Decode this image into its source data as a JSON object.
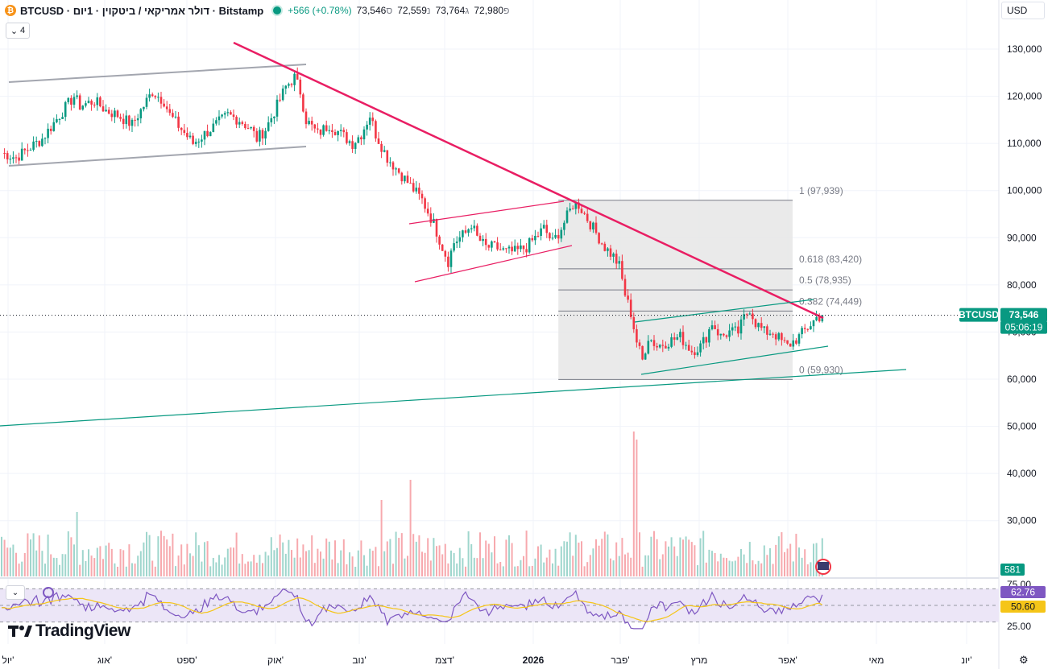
{
  "header": {
    "symbol_title": "BTCUSD · דולר אמריקאי / ביטקוין · 1יום · Bitstamp",
    "coin_glyph": "₿",
    "change": "+566 (+0.78%)",
    "open_label": "פ",
    "open": "72,980",
    "high_label": "ג",
    "high": "73,764",
    "low_label": "נ",
    "low": "72,559",
    "close_label": "ס",
    "close": "73,546"
  },
  "indicators_toggle": {
    "count": "4",
    "icon": "chevron-up-icon"
  },
  "currency_select": "USD",
  "rsi_toggle_icon": "chevron-down-icon",
  "brand": {
    "name": "TradingView",
    "icon": "tradingview-logo-icon"
  },
  "settings_icon": "gear-icon",
  "colors": {
    "up": "#089981",
    "down": "#f23645",
    "trendline": "#e91e63",
    "channel": "#9598a1",
    "fib_bg": "#e6e6e6",
    "rsi": "#7e57c2",
    "rsi_ma": "#f5c518",
    "rsi_band": "#ece6f7"
  },
  "chart_data": [
    {
      "type": "candlestick",
      "symbol": "BTCUSD",
      "x_ticks": [
        "יול'",
        "אוג'",
        "ספט'",
        "אוק'",
        "נוב'",
        "דצמ'",
        "2026",
        "פבר'",
        "מרץ",
        "אפר'",
        "מאי",
        "יונ'"
      ],
      "y_ticks": [
        30000,
        40000,
        50000,
        60000,
        70000,
        80000,
        90000,
        100000,
        110000,
        120000,
        130000
      ],
      "y_tick_labels": [
        "30,000",
        "40,000",
        "50,000",
        "60,000",
        "70,000",
        "80,000",
        "90,000",
        "100,000",
        "110,000",
        "120,000",
        "130,000"
      ],
      "ylim": [
        24000,
        134000
      ],
      "last_price_label": {
        "symbol": "BTCUSD",
        "price": "73,546",
        "countdown": "05:06:19",
        "value": 73546
      },
      "volume_last_label": "581",
      "price_path": [
        [
          0,
          108
        ],
        [
          5,
          107
        ],
        [
          14,
          111
        ],
        [
          20,
          116
        ],
        [
          25,
          120
        ],
        [
          27,
          118
        ],
        [
          32,
          119
        ],
        [
          36,
          117
        ],
        [
          40,
          116
        ],
        [
          45,
          114
        ],
        [
          48,
          117
        ],
        [
          52,
          121
        ],
        [
          56,
          119
        ],
        [
          58,
          116
        ],
        [
          62,
          113
        ],
        [
          66,
          110
        ],
        [
          70,
          112
        ],
        [
          74,
          114
        ],
        [
          78,
          116
        ],
        [
          82,
          115
        ],
        [
          86,
          113
        ],
        [
          88,
          111
        ],
        [
          91,
          113
        ],
        [
          95,
          118
        ],
        [
          98,
          122
        ],
        [
          101,
          124
        ],
        [
          103,
          121
        ],
        [
          105,
          115
        ],
        [
          109,
          112
        ],
        [
          113,
          114
        ],
        [
          117,
          112
        ],
        [
          121,
          110
        ],
        [
          124,
          112
        ],
        [
          127,
          116
        ],
        [
          129,
          112
        ],
        [
          133,
          107
        ],
        [
          137,
          104
        ],
        [
          141,
          101
        ],
        [
          145,
          98
        ],
        [
          149,
          93
        ],
        [
          152,
          88
        ],
        [
          154,
          85
        ],
        [
          156,
          89
        ],
        [
          160,
          91
        ],
        [
          162,
          93
        ],
        [
          164,
          90
        ],
        [
          167,
          88
        ],
        [
          170,
          88
        ],
        [
          174,
          87
        ],
        [
          177,
          87
        ],
        [
          181,
          88
        ],
        [
          184,
          90
        ],
        [
          187,
          92
        ],
        [
          190,
          89
        ],
        [
          193,
          92
        ],
        [
          197,
          97
        ],
        [
          199,
          97
        ],
        [
          202,
          94
        ],
        [
          205,
          91
        ],
        [
          208,
          88
        ],
        [
          211,
          86
        ],
        [
          213,
          84
        ],
        [
          215,
          78
        ],
        [
          217,
          74
        ],
        [
          219,
          68
        ],
        [
          221,
          64
        ],
        [
          223,
          69
        ],
        [
          226,
          67
        ],
        [
          230,
          68
        ],
        [
          234,
          69
        ],
        [
          238,
          66
        ],
        [
          241,
          67
        ],
        [
          243,
          69
        ],
        [
          245,
          72
        ],
        [
          248,
          69
        ],
        [
          251,
          70
        ],
        [
          254,
          70
        ],
        [
          256,
          73
        ],
        [
          258,
          75
        ],
        [
          260,
          72
        ],
        [
          263,
          70
        ],
        [
          266,
          70
        ],
        [
          269,
          68
        ],
        [
          271,
          67
        ],
        [
          273,
          68
        ],
        [
          275,
          69
        ],
        [
          278,
          71
        ],
        [
          281,
          73
        ],
        [
          283,
          73.5
        ]
      ],
      "volume_note": "volume histogram drawn beneath candles",
      "fibonacci": {
        "levels": [
          {
            "label": "1 (97,939)",
            "value": 97939
          },
          {
            "label": "0.618 (83,420)",
            "value": 83420
          },
          {
            "label": "0.5 (78,935)",
            "value": 78935
          },
          {
            "label": "0.382 (74,449)",
            "value": 74449
          },
          {
            "label": "0 (59,930)",
            "value": 59930
          }
        ]
      }
    },
    {
      "type": "line",
      "name": "RSI",
      "y_ticks": [
        25,
        50,
        75
      ],
      "y_tick_labels": [
        "25.00",
        "",
        "75.00"
      ],
      "ylim": [
        20,
        80
      ],
      "band": [
        30,
        70
      ],
      "current_value": "62.76",
      "ma_value": "50.60"
    }
  ]
}
